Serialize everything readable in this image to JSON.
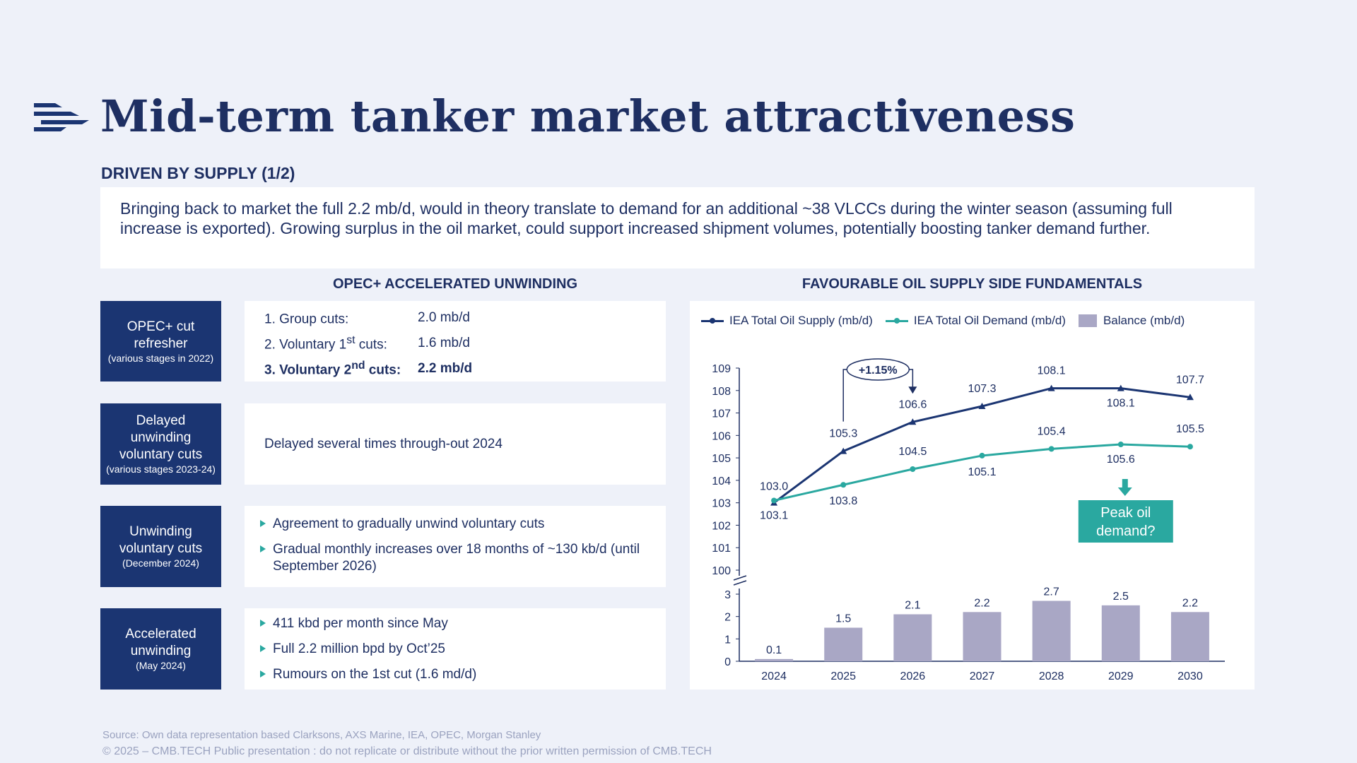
{
  "title": "Mid-term tanker market attractiveness",
  "subtitle": "DRIVEN BY SUPPLY (1/2)",
  "intro": "Bringing back to market the full 2.2 mb/d, would in theory translate to demand for an additional ~38 VLCCs during the winter season (assuming full increase is exported). Growing surplus in the oil market, could support increased shipment volumes, potentially boosting tanker demand further.",
  "left_heading": "OPEC+ ACCELERATED UNWINDING",
  "right_heading": "FAVOURABLE OIL SUPPLY SIDE FUNDAMENTALS",
  "rows": [
    {
      "label": "OPEC+ cut refresher",
      "sublabel": "(various stages in 2022)"
    },
    {
      "label": "Delayed unwinding voluntary cuts",
      "sublabel": "(various stages 2023-24)"
    },
    {
      "label": "Unwinding voluntary cuts",
      "sublabel": "(December 2024)"
    },
    {
      "label": "Accelerated unwinding",
      "sublabel": "(May 2024)"
    }
  ],
  "cuts": [
    {
      "label_pre": "1. Group cuts:",
      "sup": "",
      "label_post": "",
      "value": "2.0 mb/d"
    },
    {
      "label_pre": "2. Voluntary 1",
      "sup": "st",
      "label_post": " cuts:",
      "value": "1.6 mb/d"
    },
    {
      "label_pre": "3. Voluntary 2",
      "sup": "nd",
      "label_post": " cuts:",
      "value": "2.2 mb/d"
    }
  ],
  "delayed_text": "Delayed several times through-out 2024",
  "unwinding_bullets": [
    "Agreement to gradually unwind voluntary cuts",
    "Gradual monthly increases over 18 months of ~130 kb/d (until September 2026)"
  ],
  "accelerated_bullets": [
    "411 kbd per month since May",
    "Full 2.2 million bpd by Oct’25",
    "Rumours on the 1st cut (1.6 md/d)"
  ],
  "chart_data": {
    "type": "line",
    "categories": [
      "2024",
      "2025",
      "2026",
      "2027",
      "2028",
      "2029",
      "2030"
    ],
    "series": [
      {
        "name": "IEA Total Oil Supply (mb/d)",
        "type": "line",
        "color": "#1b3572",
        "values": [
          103.0,
          105.3,
          106.6,
          107.3,
          108.1,
          108.1,
          107.7
        ]
      },
      {
        "name": "IEA Total Oil Demand (mb/d)",
        "type": "line",
        "color": "#2aa8a0",
        "values": [
          103.1,
          103.8,
          104.5,
          105.1,
          105.4,
          105.6,
          105.5
        ]
      },
      {
        "name": "Balance (mb/d)",
        "type": "bar",
        "color": "#a9a7c5",
        "values": [
          0.1,
          1.5,
          2.1,
          2.2,
          2.7,
          2.5,
          2.2
        ]
      }
    ],
    "upper_axis": {
      "ylim": [
        100,
        109
      ],
      "ticks": [
        "100",
        "101",
        "102",
        "103",
        "104",
        "105",
        "106",
        "107",
        "108",
        "109"
      ]
    },
    "lower_axis": {
      "ylim": [
        0,
        3
      ],
      "ticks": [
        "0",
        "1",
        "2",
        "3"
      ]
    },
    "annotations": {
      "growth": "+1.15%",
      "peak": [
        "Peak oil",
        "demand?"
      ],
      "peak_color": "#2aa8a0"
    },
    "legend": "top"
  },
  "footer": {
    "source": "Source:  Own data representation based Clarksons, AXS Marine, IEA, OPEC, Morgan Stanley",
    "copyright": "© 2025 – CMB.TECH Public presentation : do not replicate or distribute without the prior written permission of CMB.TECH"
  }
}
